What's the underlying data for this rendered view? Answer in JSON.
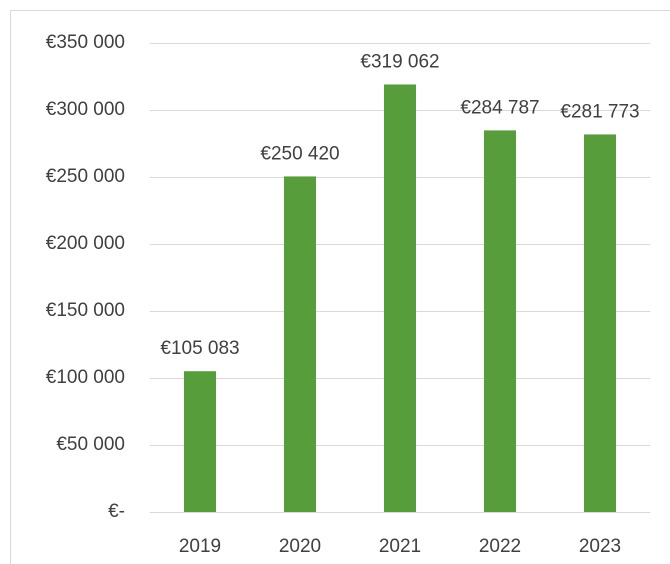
{
  "chart_data": {
    "type": "bar",
    "categories": [
      "2019",
      "2020",
      "2021",
      "2022",
      "2023"
    ],
    "values": [
      105083,
      250420,
      319062,
      284787,
      281773
    ],
    "value_labels": [
      "€105 083",
      "€250 420",
      "€319 062",
      "€284 787",
      "€281 773"
    ],
    "color": "#589d3c",
    "ylim": [
      0,
      350000
    ],
    "yticks": [
      {
        "value": 0,
        "label": "€-"
      },
      {
        "value": 50000,
        "label": "€50 000"
      },
      {
        "value": 100000,
        "label": "€100 000"
      },
      {
        "value": 150000,
        "label": "€150 000"
      },
      {
        "value": 200000,
        "label": "€200 000"
      },
      {
        "value": 250000,
        "label": "€250 000"
      },
      {
        "value": 300000,
        "label": "€300 000"
      },
      {
        "value": 350000,
        "label": "€350 000"
      }
    ],
    "grid": true
  }
}
